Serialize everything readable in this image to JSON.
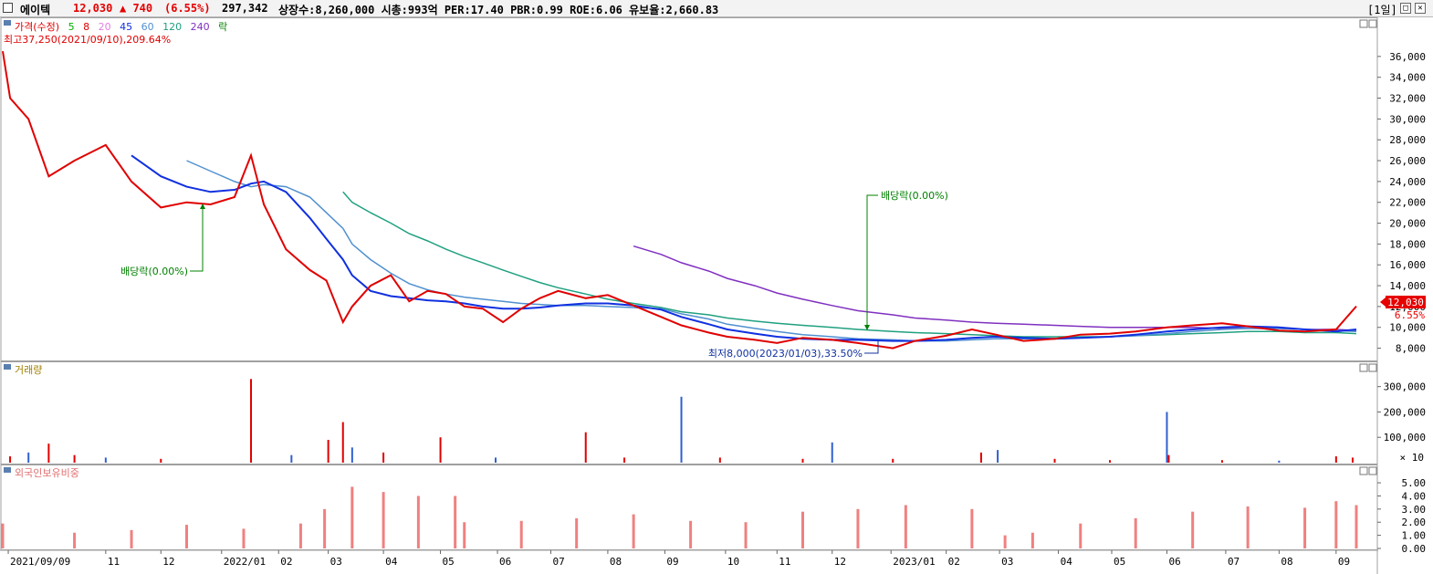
{
  "header": {
    "name": "에이텍",
    "price": "12,030",
    "change": "▲ 740",
    "change_pct": "(6.55%)",
    "volume": "297,342",
    "stats": "상장수:8,260,000 시총:993억 PER:17.40 PBR:0.99 ROE:6.06 유보율:2,660.83",
    "period": "[1일]",
    "restore_label": "□",
    "close_label": "✕"
  },
  "panels": {
    "price": {
      "legend": [
        {
          "label": "가격(수정)",
          "color": "#e00000"
        },
        {
          "label": "5",
          "color": "#00b000"
        },
        {
          "label": "8",
          "color": "#e00000"
        },
        {
          "label": "20",
          "color": "#e080e0"
        },
        {
          "label": "45",
          "color": "#1030e0"
        },
        {
          "label": "60",
          "color": "#5090d0"
        },
        {
          "label": "120",
          "color": "#20a080"
        },
        {
          "label": "240",
          "color": "#8030c0"
        },
        {
          "label": "락",
          "color": "#008000"
        }
      ],
      "high_note": "최고37,250(2021/09/10),209.64%",
      "low_note": "최저8,000(2023/01/03),33.50%",
      "dividend_1": "배당락(0.00%)",
      "dividend_2": "배당락(0.00%)",
      "current_price": "12,030",
      "current_pct": "6.55%"
    },
    "volume": {
      "legend": "거래량",
      "unit": "× 10"
    },
    "foreign": {
      "legend": "외국인보유비중"
    }
  },
  "chart_data": [
    {
      "type": "line",
      "title": "가격(수정)",
      "x_dates": [
        "2021-09-06",
        "2021-09-10",
        "2021-09-20",
        "2021-10-01",
        "2021-10-15",
        "2021-11-01",
        "2021-11-15",
        "2021-12-01",
        "2021-12-15",
        "2021-12-28",
        "2022-01-10",
        "2022-01-19",
        "2022-01-26",
        "2022-02-07",
        "2022-02-20",
        "2022-03-01",
        "2022-03-10",
        "2022-03-15",
        "2022-03-25",
        "2022-04-05",
        "2022-04-15",
        "2022-04-25",
        "2022-05-05",
        "2022-05-15",
        "2022-05-25",
        "2022-06-05",
        "2022-06-15",
        "2022-06-25",
        "2022-07-05",
        "2022-07-20",
        "2022-08-01",
        "2022-08-15",
        "2022-08-30",
        "2022-09-10",
        "2022-09-25",
        "2022-10-05",
        "2022-10-20",
        "2022-11-01",
        "2022-11-15",
        "2022-12-01",
        "2022-12-15",
        "2023-01-03",
        "2023-01-15",
        "2023-02-01",
        "2023-02-15",
        "2023-02-28",
        "2023-03-15",
        "2023-04-01",
        "2023-04-15",
        "2023-05-01",
        "2023-05-15",
        "2023-06-01",
        "2023-06-15",
        "2023-07-01",
        "2023-07-15",
        "2023-08-01",
        "2023-08-15",
        "2023-09-01",
        "2023-09-12"
      ],
      "series": [
        {
          "name": "가격(수정)",
          "color": "#e00000",
          "values": [
            36500,
            32000,
            30000,
            24500,
            26000,
            27500,
            24000,
            21500,
            22000,
            21800,
            22500,
            26500,
            21800,
            17500,
            15500,
            14500,
            10500,
            12000,
            14000,
            15000,
            12500,
            13500,
            13200,
            12000,
            11800,
            10500,
            11800,
            12800,
            13500,
            12800,
            13100,
            12100,
            11000,
            10200,
            9500,
            9100,
            8800,
            8500,
            9000,
            8800,
            8500,
            8000,
            8700,
            9200,
            9800,
            9300,
            8700,
            8900,
            9300,
            9400,
            9600,
            10000,
            10200,
            10400,
            10100,
            9700,
            9600,
            9800,
            12030
          ]
        },
        {
          "name": "45",
          "color": "#1030e0",
          "values": [
            null,
            null,
            null,
            null,
            null,
            null,
            26500,
            24500,
            23500,
            23000,
            23200,
            23800,
            24000,
            23000,
            20500,
            18500,
            16500,
            15000,
            13500,
            13000,
            12800,
            12600,
            12500,
            12300,
            12000,
            11800,
            11800,
            11900,
            12100,
            12300,
            12300,
            12100,
            11700,
            11000,
            10300,
            9800,
            9400,
            9100,
            8900,
            8800,
            8800,
            8700,
            8700,
            8800,
            9000,
            9100,
            9000,
            8900,
            9000,
            9100,
            9300,
            9600,
            9800,
            10000,
            10100,
            10000,
            9800,
            9600,
            9800
          ]
        },
        {
          "name": "60",
          "color": "#5090d0",
          "values": [
            null,
            null,
            null,
            null,
            null,
            null,
            null,
            null,
            26000,
            25000,
            24000,
            23500,
            23700,
            23500,
            22500,
            21000,
            19500,
            18000,
            16500,
            15200,
            14200,
            13600,
            13200,
            12900,
            12700,
            12500,
            12300,
            12200,
            12100,
            12100,
            12000,
            11900,
            11800,
            11300,
            10800,
            10300,
            9900,
            9600,
            9300,
            9100,
            8900,
            8800,
            8700,
            8700,
            8800,
            8900,
            8900,
            8900,
            9000,
            9100,
            9200,
            9400,
            9600,
            9800,
            9900,
            9900,
            9800,
            9700,
            9600
          ]
        },
        {
          "name": "120",
          "color": "#20a080",
          "values": [
            null,
            null,
            null,
            null,
            null,
            null,
            null,
            null,
            null,
            null,
            null,
            null,
            null,
            null,
            null,
            null,
            23000,
            22000,
            21000,
            20000,
            19000,
            18300,
            17500,
            16800,
            16200,
            15500,
            14900,
            14300,
            13800,
            13200,
            12700,
            12300,
            11900,
            11500,
            11200,
            10900,
            10600,
            10400,
            10200,
            10000,
            9800,
            9600,
            9500,
            9400,
            9300,
            9200,
            9100,
            9100,
            9100,
            9100,
            9200,
            9300,
            9400,
            9500,
            9600,
            9600,
            9500,
            9500,
            9400
          ]
        },
        {
          "name": "240",
          "color": "#8030c0",
          "values": [
            null,
            null,
            null,
            null,
            null,
            null,
            null,
            null,
            null,
            null,
            null,
            null,
            null,
            null,
            null,
            null,
            null,
            null,
            null,
            null,
            null,
            null,
            null,
            null,
            null,
            null,
            null,
            null,
            null,
            null,
            null,
            17800,
            17000,
            16200,
            15400,
            14700,
            14000,
            13300,
            12700,
            12100,
            11600,
            11200,
            10900,
            10700,
            10500,
            10400,
            10300,
            10200,
            10100,
            10000,
            10000,
            10000,
            10000,
            9900,
            9900,
            9900,
            9800,
            9800,
            9700
          ]
        }
      ],
      "ylim": [
        7000,
        38000
      ],
      "y_ticks": [
        8000,
        10000,
        12000,
        14000,
        16000,
        18000,
        20000,
        22000,
        24000,
        26000,
        28000,
        30000,
        32000,
        34000,
        36000
      ],
      "y_tick_labels": [
        "8,000",
        "10,000",
        "12,000",
        "14,000",
        "16,000",
        "18,000",
        "20,000",
        "22,000",
        "24,000",
        "26,000",
        "28,000",
        "30,000",
        "32,000",
        "34,000",
        "36,000"
      ],
      "x_tick_labels": [
        "2021/09/09",
        "11",
        "12",
        "2022/01",
        "02",
        "03",
        "04",
        "05",
        "06",
        "07",
        "08",
        "09",
        "10",
        "11",
        "12",
        "2023/01",
        "02",
        "03",
        "04",
        "05",
        "06",
        "07",
        "08",
        "09"
      ],
      "x_tick_dates": [
        "2021-09-09",
        "2021-11-01",
        "2021-12-01",
        "2022-01-03",
        "2022-02-03",
        "2022-03-02",
        "2022-04-01",
        "2022-05-02",
        "2022-06-02",
        "2022-07-01",
        "2022-08-01",
        "2022-09-01",
        "2022-10-04",
        "2022-11-01",
        "2022-12-01",
        "2023-01-02",
        "2023-02-01",
        "2023-03-02",
        "2023-04-03",
        "2023-05-02",
        "2023-06-01",
        "2023-07-03",
        "2023-08-01",
        "2023-09-01"
      ],
      "grid": false
    },
    {
      "type": "bar",
      "title": "거래량",
      "x_dates": [
        "2021-09-10",
        "2021-09-20",
        "2021-10-01",
        "2021-10-15",
        "2021-11-01",
        "2021-12-01",
        "2022-01-19",
        "2022-02-10",
        "2022-03-02",
        "2022-03-10",
        "2022-03-15",
        "2022-04-01",
        "2022-05-02",
        "2022-06-01",
        "2022-07-20",
        "2022-08-10",
        "2022-09-10",
        "2022-10-01",
        "2022-11-15",
        "2022-12-01",
        "2023-01-03",
        "2023-02-20",
        "2023-03-01",
        "2023-04-01",
        "2023-05-01",
        "2023-06-01",
        "2023-06-02",
        "2023-07-01",
        "2023-08-01",
        "2023-09-01",
        "2023-09-10"
      ],
      "values": [
        25000,
        40000,
        75000,
        30000,
        20000,
        15000,
        330000,
        30000,
        90000,
        160000,
        60000,
        40000,
        100000,
        20000,
        120000,
        20000,
        260000,
        20000,
        15000,
        80000,
        15000,
        40000,
        50000,
        15000,
        10000,
        200000,
        30000,
        10000,
        8000,
        25000,
        20000
      ],
      "ylim": [
        0,
        360000
      ],
      "y_tick_labels": [
        "100,000",
        "200,000",
        "300,000"
      ],
      "y_ticks": [
        100000,
        200000,
        300000
      ]
    },
    {
      "type": "bar",
      "title": "외국인보유비중",
      "x_dates": [
        "2021-09-06",
        "2021-10-15",
        "2021-11-15",
        "2021-12-15",
        "2022-01-15",
        "2022-02-15",
        "2022-02-28",
        "2022-03-15",
        "2022-04-01",
        "2022-04-20",
        "2022-05-10",
        "2022-05-15",
        "2022-06-15",
        "2022-07-15",
        "2022-08-15",
        "2022-09-15",
        "2022-10-15",
        "2022-11-15",
        "2022-12-15",
        "2023-01-10",
        "2023-02-15",
        "2023-03-05",
        "2023-03-20",
        "2023-04-15",
        "2023-05-15",
        "2023-06-15",
        "2023-07-15",
        "2023-08-15",
        "2023-09-01",
        "2023-09-12"
      ],
      "values": [
        1.9,
        1.2,
        1.4,
        1.8,
        1.5,
        1.9,
        3.0,
        4.7,
        4.3,
        4.0,
        4.0,
        2.0,
        2.1,
        2.3,
        2.6,
        2.1,
        2.0,
        2.8,
        3.0,
        3.3,
        3.0,
        1.0,
        1.2,
        1.9,
        2.3,
        2.8,
        3.2,
        3.1,
        3.6,
        3.3
      ],
      "ylim": [
        0,
        5.7
      ],
      "y_tick_labels": [
        "0.00",
        "1.00",
        "2.00",
        "3.00",
        "4.00",
        "5.00"
      ],
      "y_ticks": [
        0,
        1,
        2,
        3,
        4,
        5
      ]
    }
  ]
}
